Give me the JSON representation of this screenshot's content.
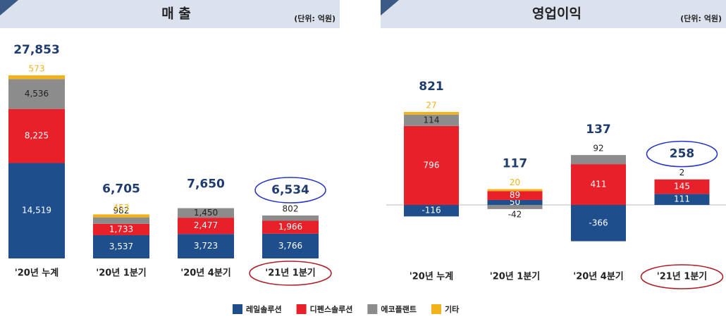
{
  "chart_data": [
    {
      "type": "bar",
      "stacked": true,
      "title": "매 출",
      "unit": "(단위: 억원)",
      "categories": [
        "'20년 누계",
        "'20년 1분기",
        "'20년 4분기",
        "'21년 1분기"
      ],
      "series": [
        {
          "name": "레일솔루션",
          "color": "#1f4e8c",
          "values": [
            14519,
            3537,
            3723,
            3766
          ],
          "value_labels": [
            "14,519",
            "3,537",
            "3,723",
            "3,766"
          ]
        },
        {
          "name": "디펜스솔루션",
          "color": "#e8202a",
          "values": [
            8225,
            1733,
            2477,
            1966
          ],
          "value_labels": [
            "8,225",
            "1,733",
            "2,477",
            "1,966"
          ]
        },
        {
          "name": "에코플랜트",
          "color": "#8c8c8c",
          "values": [
            4536,
            982,
            1450,
            802
          ],
          "value_labels": [
            "4,536",
            "982",
            "1,450",
            "802"
          ]
        },
        {
          "name": "기타",
          "color": "#f2b21b",
          "values": [
            573,
            453,
            null,
            null
          ]
        }
      ],
      "totals": [
        27853,
        6705,
        7650,
        6534
      ],
      "total_labels": [
        "27,853",
        "6,705",
        "7,650",
        "6,534"
      ]
    },
    {
      "type": "bar",
      "stacked": true,
      "title": "영업이익",
      "unit": "(단위: 억원)",
      "categories": [
        "'20년 누계",
        "'20년 1분기",
        "'20년 4분기",
        "'21년 1분기"
      ],
      "series": [
        {
          "name": "레일솔루션",
          "color": "#1f4e8c",
          "values": [
            -116,
            50,
            -366,
            111
          ]
        },
        {
          "name": "디펜스솔루션",
          "color": "#e8202a",
          "values": [
            796,
            89,
            411,
            145
          ]
        },
        {
          "name": "에코플랜트",
          "color": "#8c8c8c",
          "values": [
            114,
            -42,
            92,
            2
          ]
        },
        {
          "name": "기타",
          "color": "#f2b21b",
          "values": [
            27,
            20,
            null,
            null
          ]
        }
      ],
      "totals": [
        821,
        117,
        137,
        258
      ]
    }
  ]
}
